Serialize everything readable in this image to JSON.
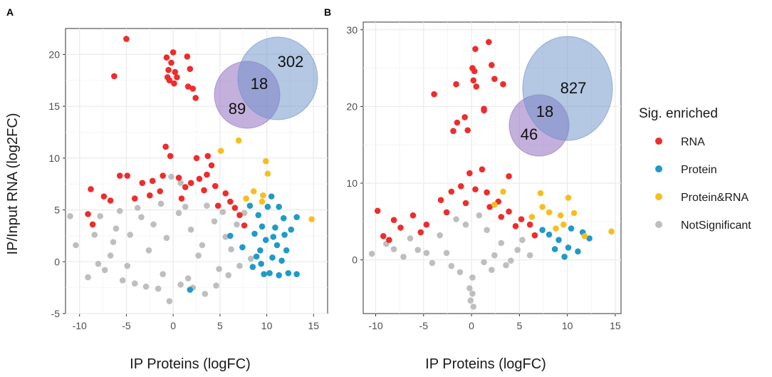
{
  "figure": {
    "shared_ylabel": "IP/Input RNA (log2FC)",
    "legend_title": "Sig. enriched",
    "legend_position": "right"
  },
  "colors": {
    "RNA": "#ee2c2c",
    "Protein": "#1f9ac9",
    "Protein&RNA": "#f6be1e",
    "NotSignificant": "#bebebe",
    "venn_rna": "#9370c0",
    "venn_protein": "#6a8fc8",
    "panel_bg": "#ffffff",
    "grid": "#ebebeb"
  },
  "legend": {
    "title": "Sig. enriched",
    "items": [
      {
        "label": "RNA",
        "color": "#ee2c2c"
      },
      {
        "label": "Protein",
        "color": "#1f9ac9"
      },
      {
        "label": "Protein&RNA",
        "color": "#f6be1e"
      },
      {
        "label": "NotSignificant",
        "color": "#bebebe"
      }
    ]
  },
  "chart_data": [
    {
      "panel": "A",
      "type": "scatter",
      "xlabel": "IP Proteins (logFC)",
      "ylabel": "IP/Input RNA (log2FC)",
      "xlim": [
        -11.5,
        16.5
      ],
      "ylim": [
        -5,
        22.5
      ],
      "xticks": [
        -10,
        -5,
        0,
        5,
        10,
        15
      ],
      "yticks": [
        -5,
        0,
        5,
        10,
        15,
        20
      ],
      "grid": true,
      "venn": {
        "only_rna": "89",
        "overlap": "18",
        "only_protein": "302"
      },
      "series": [
        {
          "name": "RNA",
          "points": [
            [
              -5,
              21.5
            ],
            [
              0,
              20.2
            ],
            [
              -6.3,
              17.9
            ],
            [
              -0.7,
              19.7
            ],
            [
              -0.5,
              18.5
            ],
            [
              -0.2,
              19.2
            ],
            [
              0.2,
              18.3
            ],
            [
              -0.4,
              17.5
            ],
            [
              0.1,
              17.2
            ],
            [
              -0.6,
              17.8
            ],
            [
              0.4,
              17.8
            ],
            [
              1.5,
              19.8
            ],
            [
              1.8,
              18.6
            ],
            [
              1.6,
              16.9
            ],
            [
              2.1,
              16.7
            ],
            [
              2.4,
              15.8
            ],
            [
              -0.8,
              11.1
            ],
            [
              -0.3,
              10.2
            ],
            [
              2.5,
              10
            ],
            [
              3.7,
              10.2
            ],
            [
              4.1,
              9.3
            ],
            [
              -5.7,
              8.3
            ],
            [
              -4.9,
              8.3
            ],
            [
              -8.8,
              7
            ],
            [
              -9.1,
              4.6
            ],
            [
              -8.6,
              3.6
            ],
            [
              -3.3,
              7.6
            ],
            [
              -2.2,
              7.8
            ],
            [
              -1.1,
              8.3
            ],
            [
              0.6,
              8.1
            ],
            [
              1.3,
              7.2
            ],
            [
              2.8,
              8
            ],
            [
              3.6,
              8.4
            ],
            [
              -6.7,
              5.9
            ],
            [
              -7.4,
              6.3
            ],
            [
              -2.5,
              6.4
            ],
            [
              4.5,
              7.3
            ],
            [
              5.6,
              6.6
            ],
            [
              6.1,
              5.8
            ],
            [
              6.6,
              5.2
            ],
            [
              7.1,
              4.5
            ],
            [
              7.6,
              3.5
            ],
            [
              -1.4,
              6.8
            ],
            [
              0.9,
              6.1
            ],
            [
              3.3,
              6.9
            ],
            [
              -4.1,
              6.1
            ],
            [
              1.9,
              7.6
            ],
            [
              4.8,
              5.4
            ]
          ]
        },
        {
          "name": "Protein",
          "points": [
            [
              8.2,
              5.4
            ],
            [
              9.1,
              4.5
            ],
            [
              10.1,
              5.3
            ],
            [
              10.5,
              6.3
            ],
            [
              11.3,
              5.3
            ],
            [
              11.8,
              4.2
            ],
            [
              10.9,
              3.3
            ],
            [
              9.5,
              3.4
            ],
            [
              8.7,
              2.7
            ],
            [
              9.9,
              2.1
            ],
            [
              11.1,
              1.6
            ],
            [
              11.9,
              2.6
            ],
            [
              12.6,
              3.1
            ],
            [
              13.2,
              4.3
            ],
            [
              9.3,
              1.1
            ],
            [
              10.6,
              0.4
            ],
            [
              8.5,
              -0.5
            ],
            [
              9.7,
              -1.2
            ],
            [
              11.3,
              -1.3
            ],
            [
              12.3,
              -1.1
            ],
            [
              13.2,
              -1.2
            ],
            [
              11.6,
              0.1
            ],
            [
              10.3,
              -1.1
            ],
            [
              9.4,
              -0.2
            ],
            [
              12.1,
              1.1
            ],
            [
              8.9,
              0.5
            ],
            [
              10.7,
              2.4
            ],
            [
              1.8,
              -2.7
            ],
            [
              6.1,
              2.5
            ],
            [
              7.4,
              1.4
            ]
          ]
        },
        {
          "name": "Protein&RNA",
          "points": [
            [
              5.1,
              10.7
            ],
            [
              7,
              11.7
            ],
            [
              9.9,
              9.7
            ],
            [
              10.1,
              8.5
            ],
            [
              9.6,
              6.4
            ],
            [
              7.8,
              6.1
            ],
            [
              14.8,
              4.1
            ],
            [
              9.5,
              5.8
            ],
            [
              8.6,
              6.8
            ]
          ]
        },
        {
          "name": "NotSignificant",
          "points": [
            [
              -10.4,
              1.6
            ],
            [
              -9.1,
              -1.5
            ],
            [
              -8,
              -0.2
            ],
            [
              -11,
              4.4
            ],
            [
              -8.4,
              2.6
            ],
            [
              -6.7,
              0.6
            ],
            [
              -7.3,
              -0.8
            ],
            [
              -5.4,
              -1.8
            ],
            [
              -4.1,
              -2.1
            ],
            [
              -2.9,
              -2.4
            ],
            [
              -1.6,
              -2.6
            ],
            [
              -0.4,
              -3.8
            ],
            [
              0.8,
              -2.2
            ],
            [
              2.1,
              -2.5
            ],
            [
              3.4,
              -3.1
            ],
            [
              4.6,
              -2.3
            ],
            [
              5.9,
              -1.3
            ],
            [
              7.1,
              -0.4
            ],
            [
              8.3,
              0.3
            ],
            [
              -7.8,
              4.4
            ],
            [
              -6.1,
              3.2
            ],
            [
              -4.6,
              2.6
            ],
            [
              -3.4,
              4.3
            ],
            [
              -2.1,
              3.6
            ],
            [
              -0.7,
              2.3
            ],
            [
              0.6,
              4.7
            ],
            [
              1.9,
              3.1
            ],
            [
              3.1,
              1.6
            ],
            [
              4.4,
              3.9
            ],
            [
              5.6,
              2.4
            ],
            [
              6.8,
              3.6
            ],
            [
              7.6,
              4.7
            ],
            [
              -5.7,
              4.9
            ],
            [
              -3.8,
              5.2
            ],
            [
              -1.3,
              5.6
            ],
            [
              1.3,
              5.3
            ],
            [
              3.6,
              5.4
            ],
            [
              5.3,
              4.8
            ],
            [
              -0.2,
              8.2
            ],
            [
              0.8,
              7.6
            ],
            [
              -2.6,
              1.1
            ],
            [
              2.7,
              0.6
            ],
            [
              -4.9,
              -0.4
            ],
            [
              4.9,
              -0.7
            ],
            [
              -1.1,
              -1.2
            ],
            [
              1.6,
              -1.6
            ],
            [
              6.2,
              1.2
            ],
            [
              -6.4,
              1.9
            ]
          ]
        }
      ]
    },
    {
      "panel": "B",
      "type": "scatter",
      "xlabel": "IP Proteins (logFC)",
      "ylabel": "IP/Input RNA (log2FC)",
      "xlim": [
        -11.3,
        15.6
      ],
      "ylim": [
        -7,
        31
      ],
      "xticks": [
        -10,
        -5,
        0,
        5,
        10,
        15
      ],
      "yticks": [
        0,
        10,
        20,
        30
      ],
      "grid": true,
      "venn": {
        "only_rna": "46",
        "overlap": "18",
        "only_protein": "827"
      },
      "series": [
        {
          "name": "RNA",
          "points": [
            [
              1.8,
              28.4
            ],
            [
              0.4,
              27.5
            ],
            [
              -3.9,
              21.6
            ],
            [
              -1.6,
              22.9
            ],
            [
              0.1,
              25
            ],
            [
              0.3,
              24.6
            ],
            [
              0.2,
              23.4
            ],
            [
              0.5,
              22.6
            ],
            [
              2.1,
              25.4
            ],
            [
              2.4,
              23.6
            ],
            [
              3.3,
              22.9
            ],
            [
              -0.7,
              18.6
            ],
            [
              -1.5,
              17.9
            ],
            [
              -1.9,
              16.8
            ],
            [
              -0.4,
              16.9
            ],
            [
              1.3,
              19.7
            ],
            [
              1.3,
              19.5
            ],
            [
              3.9,
              10.9
            ],
            [
              1.1,
              11.8
            ],
            [
              -0.2,
              11.3
            ],
            [
              -9.8,
              6.4
            ],
            [
              -8.1,
              5.2
            ],
            [
              -7.4,
              4.2
            ],
            [
              -6.1,
              5.8
            ],
            [
              -4.7,
              4.6
            ],
            [
              -3.2,
              7.8
            ],
            [
              -2.1,
              8.9
            ],
            [
              -1.1,
              9.6
            ],
            [
              0.4,
              9.2
            ],
            [
              1.6,
              8.8
            ],
            [
              2.8,
              7.6
            ],
            [
              3.9,
              6.3
            ],
            [
              5.2,
              5.3
            ],
            [
              6.1,
              4.6
            ],
            [
              -9.2,
              3.1
            ],
            [
              -8.6,
              2.6
            ],
            [
              -5.3,
              3.6
            ],
            [
              -2.6,
              6.2
            ],
            [
              -0.6,
              7.4
            ],
            [
              1.9,
              6.9
            ],
            [
              3.1,
              5.6
            ],
            [
              4.6,
              4.4
            ],
            [
              6.6,
              3.2
            ]
          ]
        },
        {
          "name": "Protein",
          "points": [
            [
              10.4,
              4.1
            ],
            [
              11.6,
              3.6
            ],
            [
              12.3,
              2.8
            ],
            [
              9.1,
              2.6
            ],
            [
              10.1,
              1.6
            ],
            [
              11.1,
              1.1
            ],
            [
              9.7,
              0.4
            ],
            [
              8.1,
              3.3
            ],
            [
              8.7,
              1.4
            ],
            [
              7.4,
              3.9
            ]
          ]
        },
        {
          "name": "Protein&RNA",
          "points": [
            [
              7.2,
              8.7
            ],
            [
              10.1,
              8.1
            ],
            [
              7.4,
              6.9
            ],
            [
              8.1,
              6.2
            ],
            [
              9.3,
              5.8
            ],
            [
              6.3,
              5.6
            ],
            [
              9.6,
              4.6
            ],
            [
              10.7,
              6.1
            ],
            [
              11.8,
              3.1
            ],
            [
              14.6,
              3.7
            ],
            [
              2.4,
              7.2
            ],
            [
              3.3,
              8.9
            ],
            [
              8.8,
              4.1
            ]
          ]
        },
        {
          "name": "NotSignificant",
          "points": [
            [
              -10.4,
              0.8
            ],
            [
              -8.9,
              2.1
            ],
            [
              -7.1,
              0.4
            ],
            [
              -5.6,
              1.3
            ],
            [
              -4.1,
              -0.4
            ],
            [
              -2.6,
              0.9
            ],
            [
              -1.2,
              -1.6
            ],
            [
              0.1,
              -2.3
            ],
            [
              -0.2,
              -3.7
            ],
            [
              0.1,
              -4.4
            ],
            [
              -0.1,
              -5.3
            ],
            [
              0.2,
              -6.1
            ],
            [
              1.3,
              -0.3
            ],
            [
              2.4,
              0.6
            ],
            [
              3.6,
              -0.7
            ],
            [
              4.8,
              1.3
            ],
            [
              6.1,
              0.6
            ],
            [
              -6.4,
              2.8
            ],
            [
              -3.3,
              3.2
            ],
            [
              -0.6,
              4.6
            ],
            [
              1.6,
              3.9
            ],
            [
              3.1,
              2.2
            ],
            [
              5.3,
              2.6
            ],
            [
              -8.1,
              1.4
            ],
            [
              -2.1,
              -0.8
            ],
            [
              2.1,
              -1.3
            ],
            [
              -1.6,
              5.3
            ],
            [
              0.8,
              5.8
            ],
            [
              -4.7,
              0.9
            ],
            [
              4.1,
              -0.1
            ]
          ]
        }
      ]
    }
  ]
}
